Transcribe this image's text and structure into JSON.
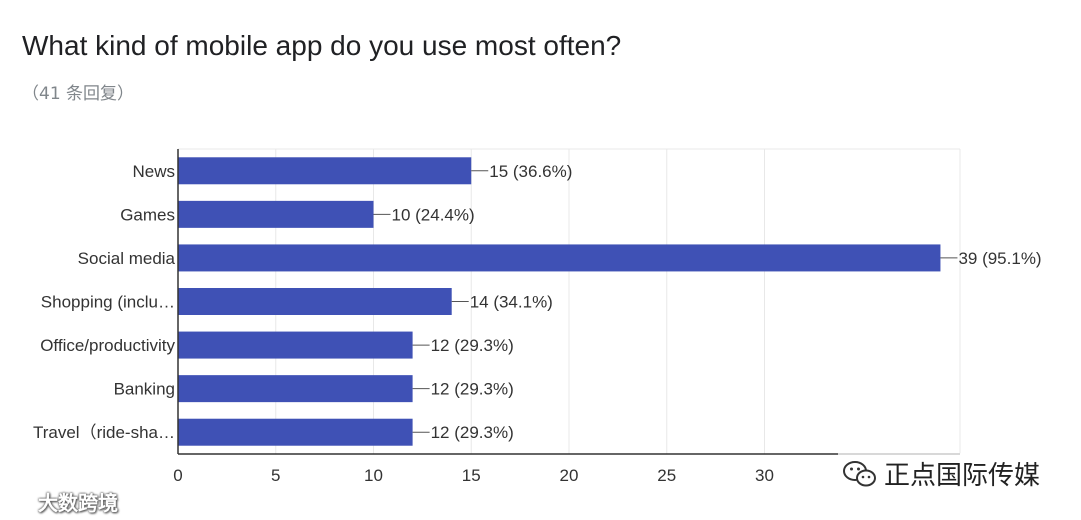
{
  "header": {
    "title": "What kind of mobile app do you use most often?",
    "subtitle": "（41 条回复）"
  },
  "watermarks": {
    "left_text": "大数跨境",
    "right_text": "正点国际传媒"
  },
  "colors": {
    "bar": "#3f51b5",
    "grid": "#e8e8e8",
    "axis": "#333333",
    "text": "#333333"
  },
  "chart_data": {
    "type": "bar",
    "orientation": "horizontal",
    "title": "What kind of mobile app do you use most often?",
    "categories": [
      "News",
      "Games",
      "Social media",
      "Shopping (inclu…",
      "Office/productivity",
      "Banking",
      "Travel（ride-sha…"
    ],
    "values": [
      15,
      10,
      39,
      14,
      12,
      12,
      12
    ],
    "data_labels": [
      "15 (36.6%)",
      "10 (24.4%)",
      "39 (95.1%)",
      "14 (34.1%)",
      "12 (29.3%)",
      "12 (29.3%)",
      "12 (29.3%)"
    ],
    "xlim": [
      0,
      40
    ],
    "xticks": [
      0,
      5,
      10,
      15,
      20,
      25,
      30
    ],
    "xlabel": "",
    "ylabel": "",
    "grid": true
  }
}
